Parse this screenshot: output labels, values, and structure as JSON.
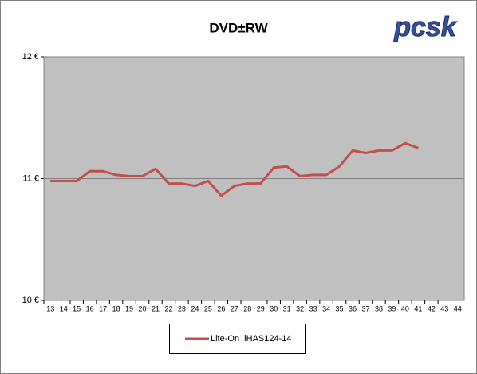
{
  "chart_data": {
    "type": "line",
    "title": "DVD±RW",
    "logo": "pcsk",
    "categories": [
      "13",
      "14",
      "15",
      "16",
      "17",
      "18",
      "19",
      "20",
      "21",
      "22",
      "23",
      "24",
      "25",
      "26",
      "27",
      "28",
      "29",
      "30",
      "31",
      "32",
      "33",
      "34",
      "35",
      "36",
      "37",
      "38",
      "39",
      "40",
      "41",
      "42",
      "43",
      "44"
    ],
    "series": [
      {
        "name": "Lite-On  iHAS124-14",
        "color": "#c0504d",
        "values": [
          10.98,
          10.98,
          10.98,
          11.06,
          11.06,
          11.03,
          11.02,
          11.02,
          11.08,
          10.96,
          10.96,
          10.94,
          10.98,
          10.86,
          10.94,
          10.96,
          10.96,
          11.09,
          11.1,
          11.02,
          11.03,
          11.03,
          11.1,
          11.23,
          11.21,
          11.23,
          11.23,
          11.29,
          11.25,
          null,
          null,
          null
        ]
      }
    ],
    "ylim": [
      10,
      12
    ],
    "yticks": [
      {
        "value": 10,
        "label": "10 €"
      },
      {
        "value": 11,
        "label": "11 €"
      },
      {
        "value": 12,
        "label": "12 €"
      }
    ],
    "grid": true,
    "legend": "bottom"
  }
}
